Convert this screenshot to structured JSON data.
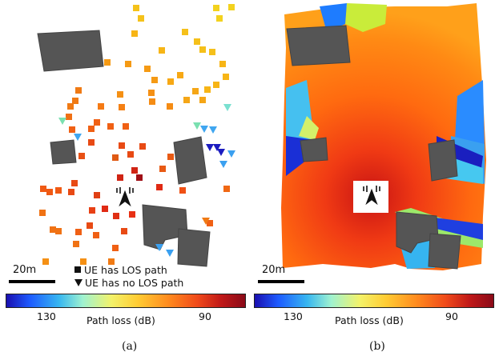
{
  "panel_a": {
    "scale_label": "20m",
    "legend_los": "UE has LOS path",
    "legend_nlos": "UE has no LOS path",
    "colorbar": {
      "tick_left": "130",
      "tick_right": "90",
      "title": "Path loss (dB)"
    },
    "caption": "(a)"
  },
  "panel_b": {
    "scale_label": "20m",
    "colorbar": {
      "tick_left": "130",
      "tick_right": "90",
      "title": "Path loss (dB)"
    },
    "caption": "(b)"
  },
  "icons": {
    "base_station": "base-station-antenna-icon",
    "los_marker": "square-marker-icon",
    "nlos_marker": "triangle-down-marker-icon"
  }
}
